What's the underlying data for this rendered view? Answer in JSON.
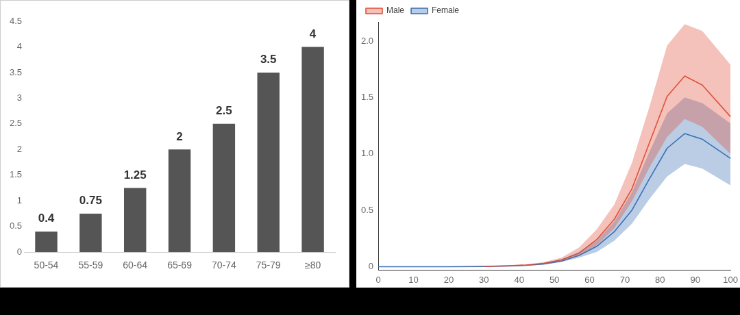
{
  "chart_data": [
    {
      "type": "bar",
      "categories": [
        "50-54",
        "55-59",
        "60-64",
        "65-69",
        "70-74",
        "75-79",
        "≥80"
      ],
      "values": [
        0.4,
        0.75,
        1.25,
        2,
        2.5,
        3.5,
        4
      ],
      "color": "#555555",
      "ylim": [
        0,
        4.5
      ],
      "yticks": [
        0,
        0.5,
        1,
        1.5,
        2,
        2.5,
        3,
        3.5,
        4,
        4.5
      ],
      "data_labels": true,
      "grid": false,
      "legend": false
    },
    {
      "type": "line",
      "x": [
        0,
        10,
        20,
        30,
        37,
        42,
        47,
        52,
        57,
        62,
        67,
        72,
        77,
        82,
        87,
        92,
        100
      ],
      "series": [
        {
          "name": "Male",
          "color": "#e0503a",
          "values": [
            null,
            null,
            null,
            0.003,
            0.008,
            0.015,
            0.03,
            0.06,
            0.12,
            0.24,
            0.42,
            0.69,
            1.1,
            1.51,
            1.69,
            1.61,
            1.33
          ],
          "lower": [
            0,
            0,
            0,
            0.002,
            0.006,
            0.012,
            0.025,
            0.05,
            0.1,
            0.19,
            0.34,
            0.58,
            0.88,
            1.15,
            1.31,
            1.24,
            1.0
          ],
          "upper": [
            0,
            0,
            0,
            0.004,
            0.01,
            0.02,
            0.04,
            0.08,
            0.17,
            0.33,
            0.55,
            0.92,
            1.42,
            1.96,
            2.15,
            2.09,
            1.79
          ]
        },
        {
          "name": "Female",
          "color": "#3a6fb5",
          "values": [
            0,
            0,
            0,
            0.002,
            0.006,
            0.012,
            0.025,
            0.05,
            0.1,
            0.18,
            0.31,
            0.5,
            0.78,
            1.05,
            1.18,
            1.13,
            0.96
          ],
          "lower": [
            0,
            0,
            0,
            0.001,
            0.004,
            0.009,
            0.018,
            0.04,
            0.08,
            0.13,
            0.23,
            0.38,
            0.6,
            0.8,
            0.91,
            0.87,
            0.72
          ],
          "upper": [
            0,
            0,
            0,
            0.003,
            0.008,
            0.016,
            0.032,
            0.065,
            0.13,
            0.23,
            0.4,
            0.66,
            1.02,
            1.36,
            1.5,
            1.45,
            1.27
          ]
        }
      ],
      "xlim": [
        0,
        100
      ],
      "xticks": [
        0,
        10,
        20,
        30,
        40,
        50,
        60,
        70,
        80,
        90,
        100
      ],
      "ylim": [
        -0.03,
        2.17
      ],
      "yticks": [
        0,
        0.5,
        {
          "value": 1,
          "label": "1.0"
        },
        1.5,
        {
          "value": 2,
          "label": "2.0"
        }
      ],
      "grid": false,
      "legend": "top left",
      "marker": "none",
      "line_style": "solid"
    }
  ]
}
